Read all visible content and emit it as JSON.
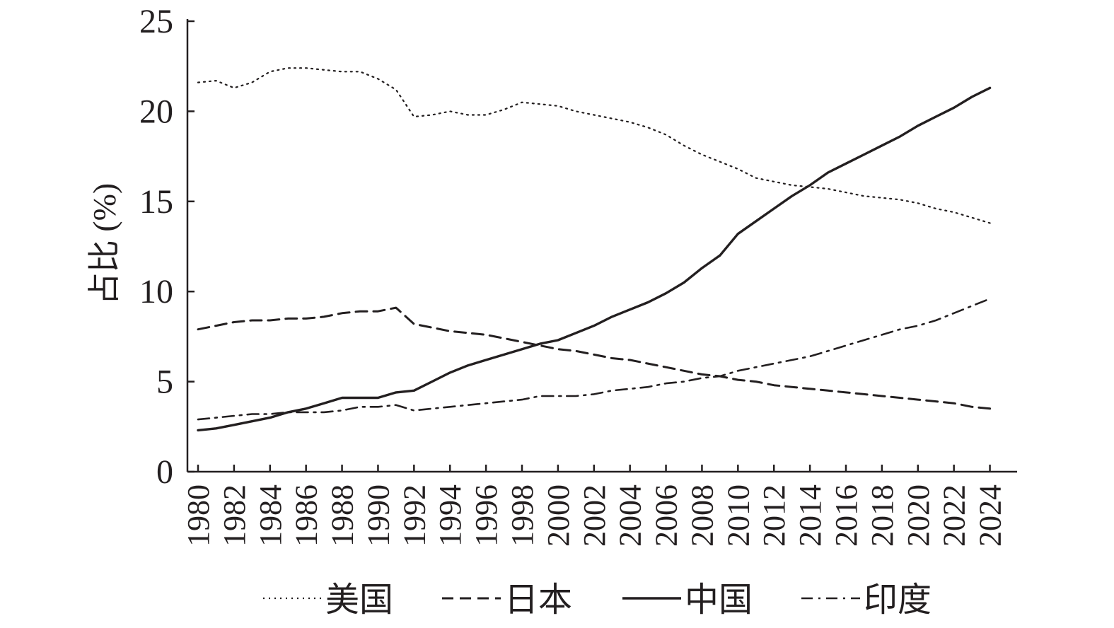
{
  "chart_data": {
    "type": "line",
    "title": "",
    "ylabel": "占比 (%)",
    "xlabel": "",
    "ylim": [
      0,
      25
    ],
    "xlim": [
      1980,
      2025
    ],
    "yticks": [
      0,
      5,
      10,
      15,
      20,
      25
    ],
    "xticks": [
      1980,
      1982,
      1984,
      1986,
      1988,
      1990,
      1992,
      1994,
      1996,
      1998,
      2000,
      2002,
      2004,
      2006,
      2008,
      2010,
      2012,
      2014,
      2016,
      2018,
      2020,
      2022,
      2024
    ],
    "grid": false,
    "legend_position": "bottom",
    "x": [
      1980,
      1981,
      1982,
      1983,
      1984,
      1985,
      1986,
      1987,
      1988,
      1989,
      1990,
      1991,
      1992,
      1993,
      1994,
      1995,
      1996,
      1997,
      1998,
      1999,
      2000,
      2001,
      2002,
      2003,
      2004,
      2005,
      2006,
      2007,
      2008,
      2009,
      2010,
      2011,
      2012,
      2013,
      2014,
      2015,
      2016,
      2017,
      2018,
      2019,
      2020,
      2021,
      2022,
      2023,
      2024
    ],
    "series": [
      {
        "name": "美国",
        "style": "dotted",
        "values": [
          21.6,
          21.7,
          21.3,
          21.6,
          22.2,
          22.4,
          22.4,
          22.3,
          22.2,
          22.2,
          21.8,
          21.2,
          19.7,
          19.8,
          20.0,
          19.8,
          19.8,
          20.1,
          20.5,
          20.4,
          20.3,
          20.0,
          19.8,
          19.6,
          19.4,
          19.1,
          18.7,
          18.1,
          17.6,
          17.2,
          16.8,
          16.3,
          16.1,
          15.9,
          15.8,
          15.7,
          15.5,
          15.3,
          15.2,
          15.1,
          14.9,
          14.6,
          14.4,
          14.1,
          13.8
        ]
      },
      {
        "name": "日本",
        "style": "dashed",
        "values": [
          7.9,
          8.1,
          8.3,
          8.4,
          8.4,
          8.5,
          8.5,
          8.6,
          8.8,
          8.9,
          8.9,
          9.1,
          8.2,
          8.0,
          7.8,
          7.7,
          7.6,
          7.4,
          7.2,
          7.0,
          6.8,
          6.7,
          6.5,
          6.3,
          6.2,
          6.0,
          5.8,
          5.6,
          5.4,
          5.3,
          5.1,
          5.0,
          4.8,
          4.7,
          4.6,
          4.5,
          4.4,
          4.3,
          4.2,
          4.1,
          4.0,
          3.9,
          3.8,
          3.6,
          3.5
        ]
      },
      {
        "name": "中国",
        "style": "solid",
        "values": [
          2.3,
          2.4,
          2.6,
          2.8,
          3.0,
          3.3,
          3.5,
          3.8,
          4.1,
          4.1,
          4.1,
          4.4,
          4.5,
          5.0,
          5.5,
          5.9,
          6.2,
          6.5,
          6.8,
          7.1,
          7.3,
          7.7,
          8.1,
          8.6,
          9.0,
          9.4,
          9.9,
          10.5,
          11.3,
          12.0,
          13.2,
          13.9,
          14.6,
          15.3,
          15.9,
          16.6,
          17.1,
          17.6,
          18.1,
          18.6,
          19.2,
          19.7,
          20.2,
          20.8,
          21.3
        ]
      },
      {
        "name": "印度",
        "style": "dash-dot",
        "values": [
          2.9,
          3.0,
          3.1,
          3.2,
          3.2,
          3.3,
          3.3,
          3.3,
          3.4,
          3.6,
          3.6,
          3.7,
          3.4,
          3.5,
          3.6,
          3.7,
          3.8,
          3.9,
          4.0,
          4.2,
          4.2,
          4.2,
          4.3,
          4.5,
          4.6,
          4.7,
          4.9,
          5.0,
          5.2,
          5.3,
          5.6,
          5.8,
          6.0,
          6.2,
          6.4,
          6.7,
          7.0,
          7.3,
          7.6,
          7.9,
          8.1,
          8.4,
          8.8,
          9.2,
          9.6
        ]
      }
    ]
  },
  "colors": {
    "ink": "#231f20",
    "background": "#ffffff"
  }
}
